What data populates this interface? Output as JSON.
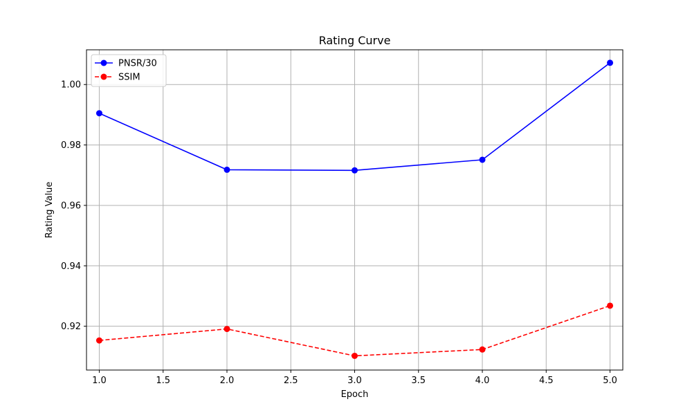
{
  "chart_data": {
    "type": "line",
    "title": "Rating Curve",
    "xlabel": "Epoch",
    "ylabel": "Rating Value",
    "xlim": [
      0.9,
      5.1
    ],
    "ylim": [
      0.9055,
      1.0115
    ],
    "x_ticks": [
      1.0,
      1.5,
      2.0,
      2.5,
      3.0,
      3.5,
      4.0,
      4.5,
      5.0
    ],
    "x_tick_labels": [
      "1.0",
      "1.5",
      "2.0",
      "2.5",
      "3.0",
      "3.5",
      "4.0",
      "4.5",
      "5.0"
    ],
    "y_ticks": [
      0.92,
      0.94,
      0.96,
      0.98,
      1.0
    ],
    "y_tick_labels": [
      "0.92",
      "0.94",
      "0.96",
      "0.98",
      "1.00"
    ],
    "grid": true,
    "legend_position": "top-left",
    "x": [
      1,
      2,
      3,
      4,
      5
    ],
    "series": [
      {
        "name": "PNSR/30",
        "values": [
          0.9905,
          0.9718,
          0.9716,
          0.9751,
          1.0072
        ],
        "color": "#0000ff",
        "line_style": "solid",
        "marker": "circle"
      },
      {
        "name": "SSIM",
        "values": [
          0.9153,
          0.9191,
          0.9102,
          0.9123,
          0.9268
        ],
        "color": "#ff0000",
        "line_style": "dashed",
        "marker": "circle"
      }
    ]
  }
}
